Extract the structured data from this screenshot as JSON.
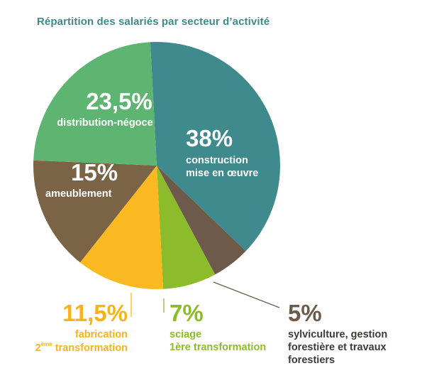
{
  "colors": {
    "title": "#3d8a8c",
    "construction": "#3f8a8c",
    "sylviculture": "#6d5a4b",
    "sciage": "#8cbc2b",
    "fabrication": "#fbb921",
    "ameublement": "#7b6445",
    "distribution": "#5db571"
  },
  "chart_data": {
    "type": "pie",
    "title": "Répartition des salariés par secteur d’activité",
    "slices": [
      {
        "value": 38,
        "pct_label": "38%",
        "label_lines": [
          "construction",
          "mise en œuvre"
        ],
        "color_key": "construction"
      },
      {
        "value": 5,
        "pct_label": "5%",
        "label_lines": [
          "sylviculture, gestion",
          "forestière et travaux",
          "forestiers"
        ],
        "color_key": "sylviculture"
      },
      {
        "value": 7,
        "pct_label": "7%",
        "label_lines": [
          "sciage",
          "1ère transformation"
        ],
        "color_key": "sciage"
      },
      {
        "value": 11.5,
        "pct_label": "11,5%",
        "label_lines": [
          "fabrication",
          "2ème transformation"
        ],
        "color_key": "fabrication"
      },
      {
        "value": 15,
        "pct_label": "15%",
        "label_lines": [
          "ameublement"
        ],
        "color_key": "ameublement"
      },
      {
        "value": 23.5,
        "pct_label": "23,5%",
        "label_lines": [
          "distribution-négoce"
        ],
        "color_key": "distribution"
      }
    ]
  }
}
